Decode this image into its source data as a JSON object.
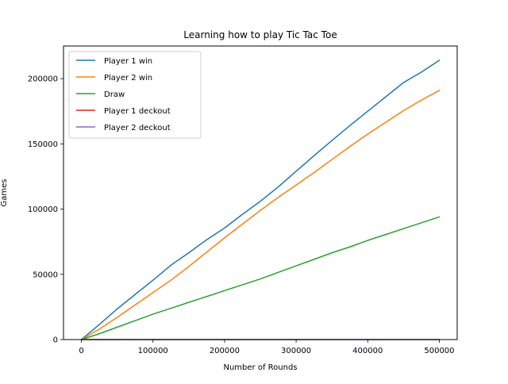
{
  "chart_data": {
    "type": "line",
    "title": "Learning how to play Tic Tac Toe",
    "xlabel": "Number of Rounds",
    "ylabel": "Games",
    "xlim": [
      -25000,
      525000
    ],
    "ylim": [
      0,
      225000
    ],
    "xticks": [
      0,
      100000,
      200000,
      300000,
      400000,
      500000
    ],
    "xtick_labels": [
      "0",
      "100000",
      "200000",
      "300000",
      "400000",
      "500000"
    ],
    "yticks": [
      0,
      50000,
      100000,
      150000,
      200000
    ],
    "ytick_labels": [
      "0",
      "50000",
      "100000",
      "150000",
      "200000"
    ],
    "grid": false,
    "legend_position": "upper-left",
    "x": [
      0,
      25000,
      50000,
      75000,
      100000,
      125000,
      150000,
      175000,
      200000,
      225000,
      250000,
      275000,
      300000,
      325000,
      350000,
      375000,
      400000,
      425000,
      450000,
      475000,
      500000
    ],
    "series": [
      {
        "name": "Player 1 win",
        "color": "#1f77b4",
        "values": [
          0,
          11500,
          23500,
          34500,
          45500,
          57000,
          66500,
          76500,
          85500,
          96000,
          106000,
          117000,
          129000,
          141000,
          152500,
          164000,
          175000,
          186000,
          197000,
          205000,
          214000
        ]
      },
      {
        "name": "Player 2 win",
        "color": "#ff7f0e",
        "values": [
          0,
          8000,
          17000,
          26500,
          36000,
          45500,
          56000,
          67000,
          78000,
          88500,
          99000,
          109000,
          118500,
          128000,
          138000,
          148000,
          157500,
          166500,
          175500,
          183500,
          191000
        ]
      },
      {
        "name": "Draw",
        "color": "#2ca02c",
        "values": [
          0,
          4500,
          9500,
          14500,
          19500,
          24000,
          28500,
          33000,
          37500,
          42000,
          46500,
          51500,
          56500,
          61500,
          66500,
          71000,
          76000,
          80500,
          85000,
          89500,
          94000
        ]
      },
      {
        "name": "Player 1 deckout",
        "color": "#d62728",
        "values": [
          0,
          0,
          0,
          0,
          0,
          0,
          0,
          0,
          0,
          0,
          0,
          0,
          0,
          0,
          0,
          0,
          0,
          0,
          0,
          0,
          0
        ]
      },
      {
        "name": "Player 2 deckout",
        "color": "#9467bd",
        "values": [
          0,
          0,
          0,
          0,
          0,
          0,
          0,
          0,
          0,
          0,
          0,
          0,
          0,
          0,
          0,
          0,
          0,
          0,
          0,
          0,
          0
        ]
      }
    ]
  }
}
